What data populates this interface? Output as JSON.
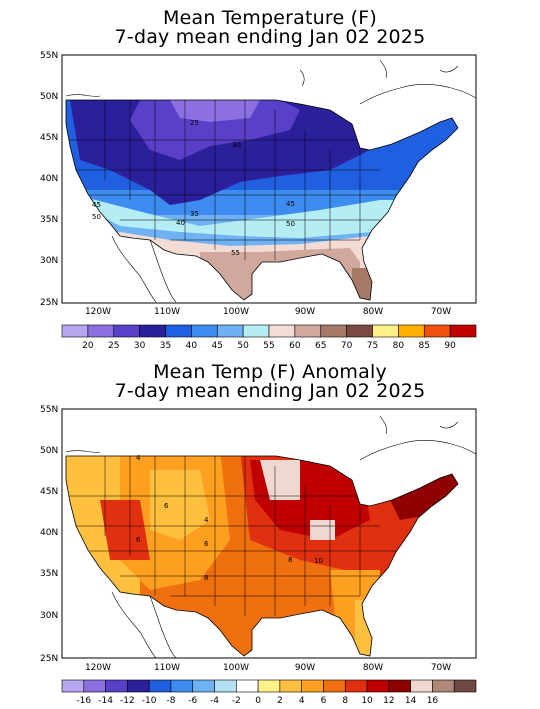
{
  "panel1": {
    "title_line1": "Mean Temperature (F)",
    "title_line2": "7-day mean ending Jan 02 2025",
    "lat_labels": [
      "55N",
      "50N",
      "45N",
      "40N",
      "35N",
      "30N",
      "25N"
    ],
    "lon_labels": [
      "120W",
      "110W",
      "100W",
      "90W",
      "80W",
      "70W"
    ],
    "contour_labels": [
      "25",
      "30",
      "45",
      "50",
      "35",
      "40",
      "45",
      "50",
      "55"
    ],
    "legend_colors": [
      "#b9a6f0",
      "#8a70e0",
      "#5a40c8",
      "#2c1f9c",
      "#2060e0",
      "#3e8cf0",
      "#6fb2f4",
      "#b4eef4",
      "#f2dcd4",
      "#d0a89c",
      "#a67868",
      "#7a4a40",
      "#fff08a",
      "#ffb000",
      "#f05010",
      "#c00000"
    ],
    "legend_labels": [
      "20",
      "25",
      "30",
      "35",
      "40",
      "45",
      "50",
      "55",
      "60",
      "65",
      "70",
      "75",
      "80",
      "85",
      "90"
    ]
  },
  "panel2": {
    "title_line1": "Mean Temp (F) Anomaly",
    "title_line2": "7-day mean ending Jan 02 2025",
    "lat_labels": [
      "55N",
      "50N",
      "45N",
      "40N",
      "35N",
      "30N",
      "25N"
    ],
    "lon_labels": [
      "120W",
      "110W",
      "100W",
      "90W",
      "80W",
      "70W"
    ],
    "contour_labels": [
      "4",
      "6",
      "4",
      "6",
      "6",
      "8",
      "8",
      "10"
    ],
    "legend_colors": [
      "#b9a6f0",
      "#8a70e0",
      "#5a40c8",
      "#2c1f9c",
      "#2060e0",
      "#3e8cf0",
      "#6fb2f4",
      "#b4e0f4",
      "#ffffff",
      "#fff08a",
      "#ffc040",
      "#ffa020",
      "#f07010",
      "#e03010",
      "#c00000",
      "#900000",
      "#f0d8d0",
      "#b08878",
      "#704840"
    ],
    "legend_labels": [
      "-16",
      "-14",
      "-12",
      "-10",
      "-8",
      "-6",
      "-4",
      "-2",
      "0",
      "2",
      "4",
      "6",
      "8",
      "10",
      "12",
      "14",
      "16"
    ]
  }
}
